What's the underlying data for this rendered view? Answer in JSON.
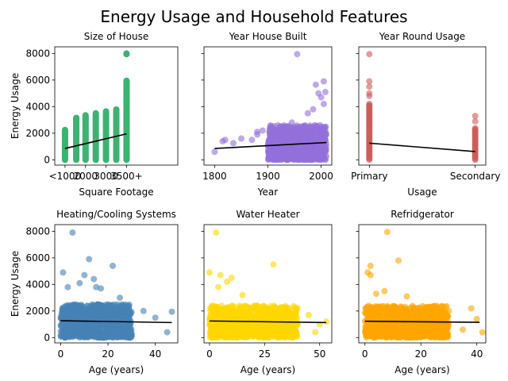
{
  "figure": {
    "title": "Energy Usage and Household Features"
  },
  "chart_data": [
    {
      "type": "scatter",
      "title": "Size of House",
      "xlabel": "Square Footage",
      "ylabel": "Energy Usage",
      "color": "#3cb371",
      "alpha": 1.0,
      "xlim": [
        0.5,
        6.5
      ],
      "ylim": [
        -400,
        8500
      ],
      "xticks": [
        {
          "value": 1,
          "label": "<1000"
        },
        {
          "value": 2,
          "label": "2000"
        },
        {
          "value": 3,
          "label": "3000"
        },
        {
          "value": 4,
          "label": "3500+"
        }
      ],
      "yticks": [
        0,
        2000,
        4000,
        6000,
        8000
      ],
      "points": [
        [
          0.2,
          0,
          2300
        ],
        [
          0.35,
          0,
          2200
        ],
        [
          0.45,
          0,
          2100
        ],
        [
          1.35,
          0,
          1900
        ],
        [
          1.7,
          0,
          2300
        ],
        [
          1.7,
          2600,
          3100
        ],
        [
          2.35,
          0,
          2300
        ],
        [
          2.7,
          0,
          2500
        ],
        [
          2.7,
          2600,
          3300
        ],
        [
          3.35,
          0,
          2700
        ],
        [
          3.35,
          2800,
          3500
        ],
        [
          3.7,
          0,
          2700
        ],
        [
          3.7,
          2800,
          3600
        ],
        [
          4.35,
          0,
          2700
        ],
        [
          4.35,
          2800,
          3500
        ],
        [
          4.7,
          0,
          2900
        ],
        [
          4.7,
          3000,
          3700
        ],
        [
          5.35,
          0,
          2800
        ],
        [
          5.35,
          3000,
          3600
        ],
        [
          5.7,
          0,
          3000
        ],
        [
          5.7,
          3100,
          4000
        ],
        [
          6.35,
          0,
          2900
        ],
        [
          6.35,
          3000,
          3700
        ],
        [
          7.0,
          0,
          6000
        ]
      ],
      "points_note": "",
      "cat_x": [
        1,
        1.55,
        2,
        2.5,
        3,
        3.5,
        4
      ],
      "cat_bands": [
        [
          0,
          2300
        ],
        [
          0,
          3200
        ],
        [
          0,
          3300
        ],
        [
          0,
          3500
        ],
        [
          0,
          3700
        ],
        [
          0,
          3800
        ],
        [
          0,
          6000
        ]
      ],
      "outliers": [
        [
          2,
          3350
        ],
        [
          4,
          5600
        ],
        [
          4,
          5900
        ],
        [
          4,
          7950
        ],
        [
          4,
          8000
        ],
        [
          1.55,
          3150
        ]
      ],
      "fit": [
        [
          1,
          850
        ],
        [
          4,
          1950
        ]
      ]
    },
    {
      "type": "scatter",
      "title": "Year House Built",
      "xlabel": "Year",
      "ylabel": "",
      "color": "#9370db",
      "alpha": 0.6,
      "xlim": [
        1780,
        2020
      ],
      "ylim": [
        -400,
        8500
      ],
      "xticks": [
        {
          "value": 1800,
          "label": "1800"
        },
        {
          "value": 1900,
          "label": "1900"
        },
        {
          "value": 2000,
          "label": "2000"
        }
      ],
      "yticks": [
        0,
        2000,
        4000,
        6000,
        8000
      ],
      "bulk": {
        "x": [
          1900,
          2010
        ],
        "y": [
          0,
          2600
        ]
      },
      "outliers": [
        [
          1800,
          600
        ],
        [
          1815,
          1400
        ],
        [
          1820,
          1500
        ],
        [
          1835,
          1250
        ],
        [
          1850,
          1600
        ],
        [
          1870,
          1500
        ],
        [
          1880,
          1900
        ],
        [
          1880,
          2100
        ],
        [
          1890,
          2200
        ],
        [
          1955,
          7950
        ],
        [
          1990,
          5650
        ],
        [
          1995,
          5000
        ],
        [
          2000,
          4700
        ],
        [
          2005,
          5900
        ],
        [
          2008,
          5100
        ],
        [
          2005,
          4200
        ],
        [
          1975,
          3500
        ],
        [
          1985,
          3800
        ],
        [
          1945,
          2800
        ]
      ],
      "fit": [
        [
          1800,
          850
        ],
        [
          2010,
          1300
        ]
      ]
    },
    {
      "type": "scatter",
      "title": "Year Round Usage",
      "xlabel": "Usage",
      "ylabel": "",
      "color": "#cd5c5c",
      "alpha": 0.6,
      "xlim": [
        -0.1,
        1.1
      ],
      "ylim": [
        -400,
        8500
      ],
      "xticks": [
        {
          "value": 0,
          "label": "Primary"
        },
        {
          "value": 1,
          "label": "Secondary"
        }
      ],
      "yticks": [
        0,
        2000,
        4000,
        6000,
        8000
      ],
      "cat_x": [
        0,
        1
      ],
      "cat_bands": [
        [
          0,
          4200
        ],
        [
          0,
          2400
        ]
      ],
      "outliers": [
        [
          0,
          4800
        ],
        [
          0,
          5000
        ],
        [
          0,
          5500
        ],
        [
          0,
          5900
        ],
        [
          0,
          7950
        ],
        [
          1,
          2900
        ],
        [
          1,
          3300
        ]
      ],
      "fit": [
        [
          0,
          1250
        ],
        [
          1,
          620
        ]
      ]
    },
    {
      "type": "scatter",
      "title": "Heating/Cooling Systems",
      "xlabel": "Age (years)",
      "ylabel": "Energy Usage",
      "color": "#4682b4",
      "alpha": 0.6,
      "xlim": [
        -2.5,
        49.5
      ],
      "ylim": [
        -400,
        8500
      ],
      "xticks": [
        {
          "value": 0,
          "label": "0"
        },
        {
          "value": 20,
          "label": "20"
        },
        {
          "value": 40,
          "label": "40"
        }
      ],
      "yticks": [
        0,
        2000,
        4000,
        6000,
        8000
      ],
      "bulk": {
        "x": [
          0,
          30
        ],
        "y": [
          0,
          2500
        ]
      },
      "outliers": [
        [
          5,
          7900
        ],
        [
          12,
          5900
        ],
        [
          22,
          5400
        ],
        [
          1,
          4900
        ],
        [
          10,
          4700
        ],
        [
          14,
          4400
        ],
        [
          8,
          4100
        ],
        [
          15,
          3800
        ],
        [
          17,
          3700
        ],
        [
          35,
          2000
        ],
        [
          40,
          1500
        ],
        [
          47,
          1950
        ],
        [
          45,
          400
        ],
        [
          3,
          3800
        ],
        [
          25,
          3000
        ]
      ],
      "fit": [
        [
          0,
          1270
        ],
        [
          47,
          1130
        ]
      ]
    },
    {
      "type": "scatter",
      "title": "Water Heater",
      "xlabel": "Age (years)",
      "ylabel": "",
      "color": "#ffd700",
      "alpha": 0.6,
      "xlim": [
        -2.5,
        55.5
      ],
      "ylim": [
        -400,
        8500
      ],
      "xticks": [
        {
          "value": 0,
          "label": "0"
        },
        {
          "value": 25,
          "label": "25"
        },
        {
          "value": 50,
          "label": "50"
        }
      ],
      "yticks": [
        0,
        2000,
        4000,
        6000,
        8000
      ],
      "bulk": {
        "x": [
          0,
          40
        ],
        "y": [
          0,
          2400
        ]
      },
      "outliers": [
        [
          3,
          7900
        ],
        [
          29,
          5500
        ],
        [
          0,
          4900
        ],
        [
          5,
          4700
        ],
        [
          10,
          4500
        ],
        [
          8,
          4200
        ],
        [
          4,
          3800
        ],
        [
          15,
          3200
        ],
        [
          45,
          1700
        ],
        [
          50,
          1000
        ],
        [
          53,
          1200
        ],
        [
          48,
          400
        ]
      ],
      "fit": [
        [
          0,
          1250
        ],
        [
          53,
          1130
        ]
      ]
    },
    {
      "type": "scatter",
      "title": "Refridgerator",
      "xlabel": "Age (years)",
      "ylabel": "",
      "color": "#ffa500",
      "alpha": 0.6,
      "xlim": [
        -2.2,
        43.2
      ],
      "ylim": [
        -400,
        8500
      ],
      "xticks": [
        {
          "value": 0,
          "label": "0"
        },
        {
          "value": 20,
          "label": "20"
        },
        {
          "value": 40,
          "label": "40"
        }
      ],
      "yticks": [
        0,
        2000,
        4000,
        6000,
        8000
      ],
      "bulk": {
        "x": [
          0,
          30
        ],
        "y": [
          0,
          2400
        ]
      },
      "outliers": [
        [
          8,
          7950
        ],
        [
          12,
          5800
        ],
        [
          2,
          5400
        ],
        [
          1,
          4900
        ],
        [
          2,
          4700
        ],
        [
          7,
          3500
        ],
        [
          4,
          3300
        ],
        [
          15,
          3100
        ],
        [
          30,
          2000
        ],
        [
          38,
          2200
        ],
        [
          40,
          1400
        ],
        [
          42,
          400
        ],
        [
          35,
          600
        ]
      ],
      "fit": [
        [
          0,
          1230
        ],
        [
          41,
          1150
        ]
      ]
    }
  ]
}
